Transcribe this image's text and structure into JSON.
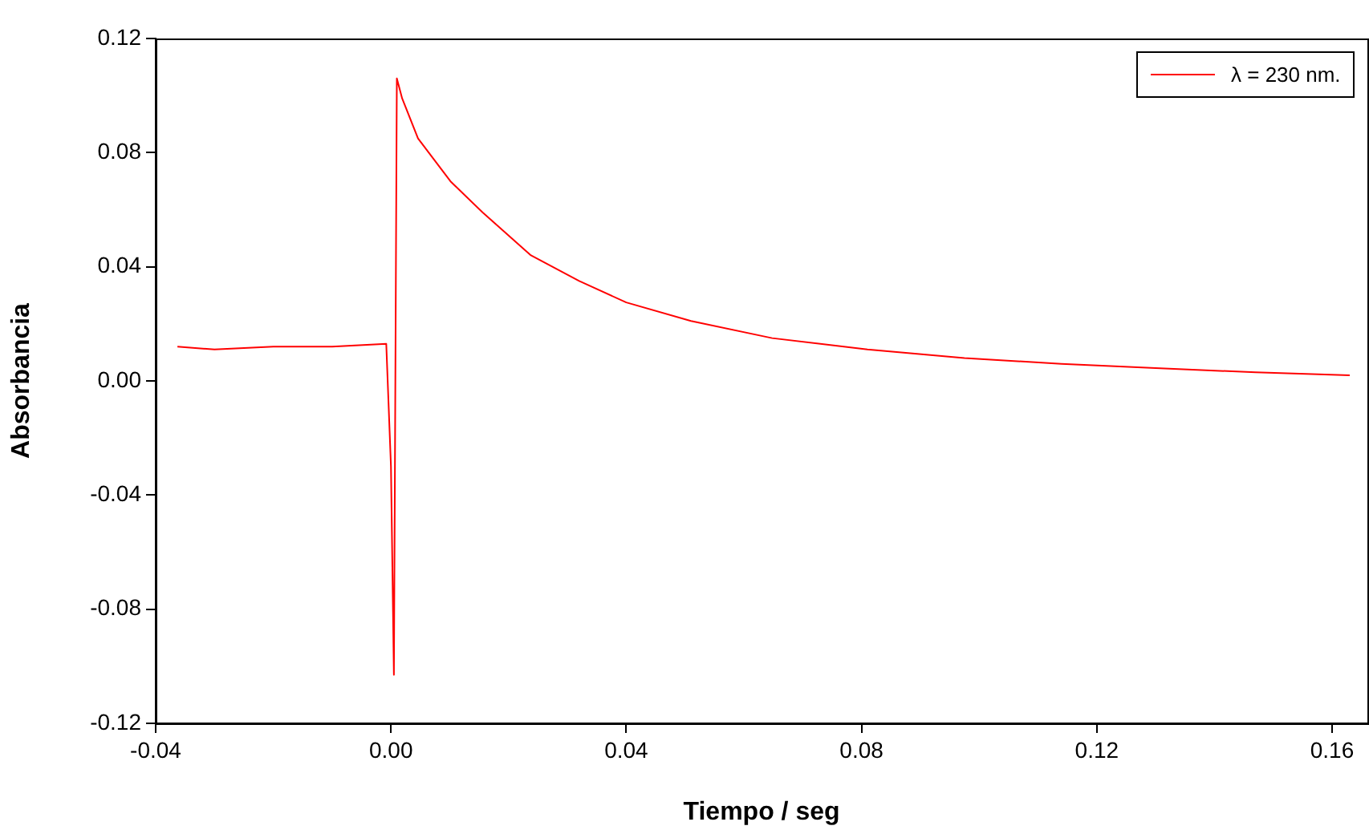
{
  "chart_data": {
    "type": "line",
    "xlabel": "Tiempo / seg",
    "ylabel": "Absorbancia",
    "legend": "top right",
    "marker": "none",
    "line_style": "solid",
    "grid": false,
    "xlim": [
      -0.04,
      0.166
    ],
    "xticks": [
      {
        "value": -0.04,
        "label": "-0.04"
      },
      {
        "value": 0,
        "label": "0.00"
      },
      {
        "value": 0.04,
        "label": "0.04"
      },
      {
        "value": 0.08,
        "label": "0.08"
      },
      {
        "value": 0.12,
        "label": "0.12"
      },
      {
        "value": 0.16,
        "label": "0.16"
      }
    ],
    "ylim": [
      -0.12,
      0.12
    ],
    "yticks": [
      {
        "value": -0.12,
        "label": "-0.12"
      },
      {
        "value": -0.08,
        "label": "-0.08"
      },
      {
        "value": -0.04,
        "label": "-0.04"
      },
      {
        "value": 0,
        "label": "0.00"
      },
      {
        "value": 0.04,
        "label": "0.04"
      },
      {
        "value": 0.08,
        "label": "0.08"
      },
      {
        "value": 0.12,
        "label": "0.12"
      }
    ],
    "series": [
      {
        "name": "λ = 230 nm.",
        "color": "#ff0000",
        "x": [
          -0.0363,
          -0.03,
          -0.02,
          -0.01,
          -0.0008,
          0.0,
          0.0005,
          0.001,
          0.0019,
          0.0046,
          0.0101,
          0.0156,
          0.0238,
          0.032,
          0.04,
          0.051,
          0.0648,
          0.081,
          0.0975,
          0.114,
          0.13,
          0.147,
          0.163
        ],
        "values": [
          0.012,
          0.011,
          0.012,
          0.012,
          0.013,
          -0.03,
          -0.103,
          0.106,
          0.099,
          0.085,
          0.07,
          0.059,
          0.044,
          0.035,
          0.0275,
          0.021,
          0.015,
          0.011,
          0.008,
          0.006,
          0.0045,
          0.003,
          0.002
        ]
      }
    ]
  }
}
